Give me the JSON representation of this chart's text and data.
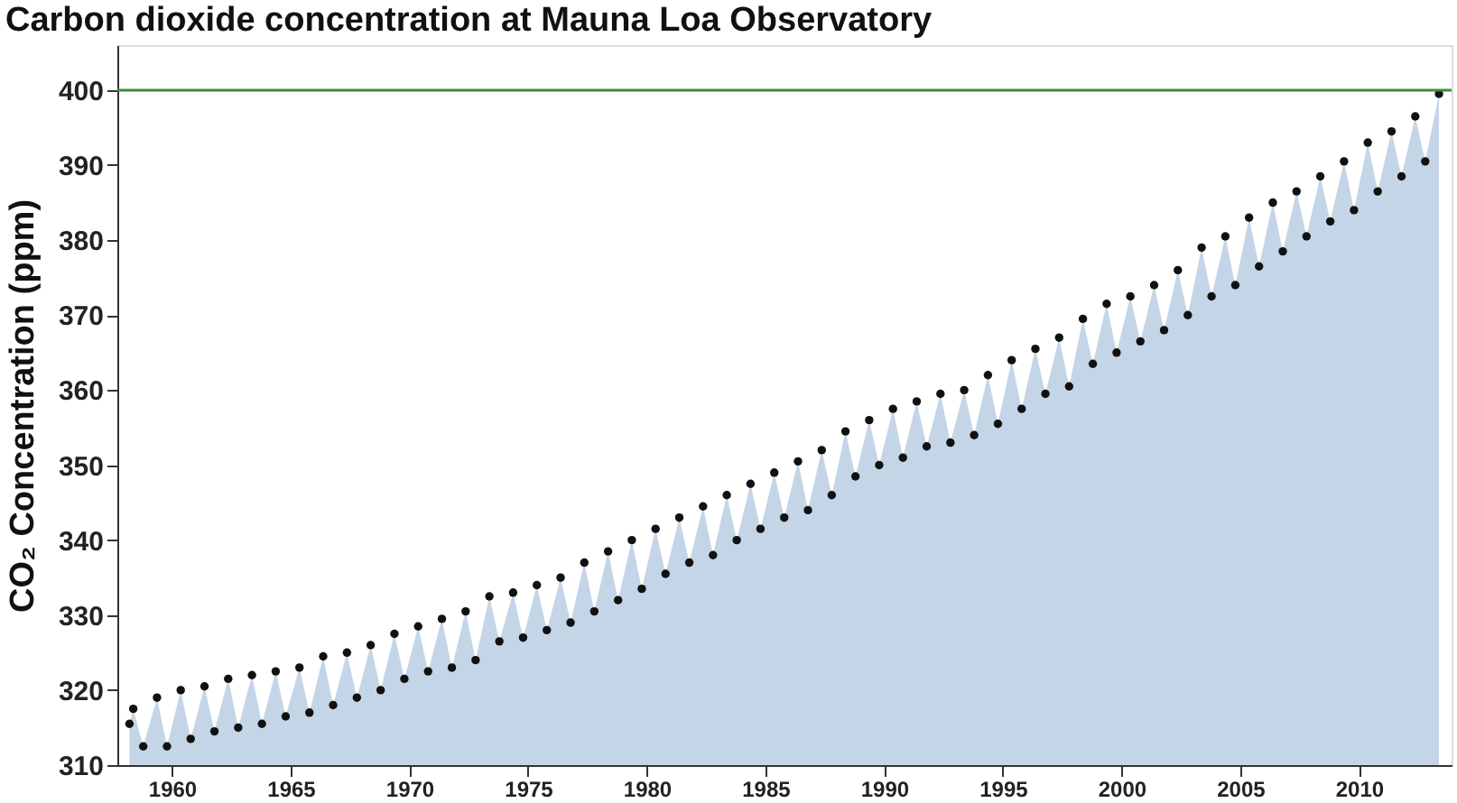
{
  "chart_data": {
    "type": "scatter",
    "title": "Carbon dioxide concentration at Mauna Loa Observatory",
    "ylabel": "CO₂ Concentration (ppm)",
    "x": [
      1958.21,
      1958.37,
      1958.79,
      1959.37,
      1959.79,
      1960.37,
      1960.79,
      1961.37,
      1961.79,
      1962.37,
      1962.79,
      1963.37,
      1963.79,
      1964.37,
      1964.79,
      1965.37,
      1965.79,
      1966.37,
      1966.79,
      1967.37,
      1967.79,
      1968.37,
      1968.79,
      1969.37,
      1969.79,
      1970.37,
      1970.79,
      1971.37,
      1971.79,
      1972.37,
      1972.79,
      1973.37,
      1973.79,
      1974.37,
      1974.79,
      1975.37,
      1975.79,
      1976.37,
      1976.79,
      1977.37,
      1977.79,
      1978.37,
      1978.79,
      1979.37,
      1979.79,
      1980.37,
      1980.79,
      1981.37,
      1981.79,
      1982.37,
      1982.79,
      1983.37,
      1983.79,
      1984.37,
      1984.79,
      1985.37,
      1985.79,
      1986.37,
      1986.79,
      1987.37,
      1987.79,
      1988.37,
      1988.79,
      1989.37,
      1989.79,
      1990.37,
      1990.79,
      1991.37,
      1991.79,
      1992.37,
      1992.79,
      1993.37,
      1993.79,
      1994.37,
      1994.79,
      1995.37,
      1995.79,
      1996.37,
      1996.79,
      1997.37,
      1997.79,
      1998.37,
      1998.79,
      1999.37,
      1999.79,
      2000.37,
      2000.79,
      2001.37,
      2001.79,
      2002.37,
      2002.79,
      2003.37,
      2003.79,
      2004.37,
      2004.79,
      2005.37,
      2005.79,
      2006.37,
      2006.79,
      2007.37,
      2007.79,
      2008.37,
      2008.79,
      2009.37,
      2009.79,
      2010.37,
      2010.79,
      2011.37,
      2011.79,
      2012.37,
      2012.79,
      2013.37
    ],
    "series": [
      {
        "type": "area",
        "color": "#c5d5e8",
        "values": [
          315.5,
          317.5,
          312.5,
          319,
          312.5,
          320,
          313.5,
          320.5,
          314.5,
          321.5,
          315,
          322,
          315.5,
          322.5,
          316.5,
          323,
          317,
          324.5,
          318,
          325,
          319,
          326,
          320,
          327.5,
          321.5,
          328.5,
          322.5,
          329.5,
          323,
          330.5,
          324,
          332.5,
          326.5,
          333,
          327,
          334,
          328,
          335,
          329,
          337,
          330.5,
          338.5,
          332,
          340,
          333.5,
          341.5,
          335.5,
          343,
          337,
          344.5,
          338,
          346,
          340,
          347.5,
          341.5,
          349,
          343,
          350.5,
          344,
          352,
          346,
          354.5,
          348.5,
          356,
          350,
          357.5,
          351,
          358.5,
          352.5,
          359.5,
          353,
          360,
          354,
          362,
          355.5,
          364,
          357.5,
          365.5,
          359.5,
          367,
          360.5,
          369.5,
          363.5,
          371.5,
          365,
          372.5,
          366.5,
          374,
          368,
          376,
          370,
          379,
          372.5,
          380.5,
          374,
          383,
          376.5,
          385,
          378.5,
          386.5,
          380.5,
          388.5,
          382.5,
          390.5,
          384,
          393,
          386.5,
          394.5,
          388.5,
          396.5,
          390.5,
          399.5
        ]
      },
      {
        "color": "#111111",
        "marker": "circle",
        "values": [
          315.5,
          317.5,
          312.5,
          319,
          312.5,
          320,
          313.5,
          320.5,
          314.5,
          321.5,
          315,
          322,
          315.5,
          322.5,
          316.5,
          323,
          317,
          324.5,
          318,
          325,
          319,
          326,
          320,
          327.5,
          321.5,
          328.5,
          322.5,
          329.5,
          323,
          330.5,
          324,
          332.5,
          326.5,
          333,
          327,
          334,
          328,
          335,
          329,
          337,
          330.5,
          338.5,
          332,
          340,
          333.5,
          341.5,
          335.5,
          343,
          337,
          344.5,
          338,
          346,
          340,
          347.5,
          341.5,
          349,
          343,
          350.5,
          344,
          352,
          346,
          354.5,
          348.5,
          356,
          350,
          357.5,
          351,
          358.5,
          352.5,
          359.5,
          353,
          360,
          354,
          362,
          355.5,
          364,
          357.5,
          365.5,
          359.5,
          367,
          360.5,
          369.5,
          363.5,
          371.5,
          365,
          372.5,
          366.5,
          374,
          368,
          376,
          370,
          379,
          372.5,
          380.5,
          374,
          383,
          376.5,
          385,
          378.5,
          386.5,
          380.5,
          388.5,
          382.5,
          390.5,
          384,
          393,
          386.5,
          394.5,
          388.5,
          396.5,
          390.5,
          399.5
        ]
      }
    ],
    "xlim": [
      1957.7,
      2013.9
    ],
    "xticks": [
      1960,
      1965,
      1970,
      1975,
      1980,
      1985,
      1990,
      1995,
      2000,
      2005,
      2010
    ],
    "ylim": [
      310,
      406
    ],
    "yticks": [
      310,
      320,
      330,
      340,
      350,
      360,
      370,
      380,
      390,
      400
    ],
    "ref_lines": [
      {
        "axis": "y",
        "value": 400,
        "color": "#3d8c3d",
        "line_style": "solid"
      }
    ],
    "grid": false
  }
}
